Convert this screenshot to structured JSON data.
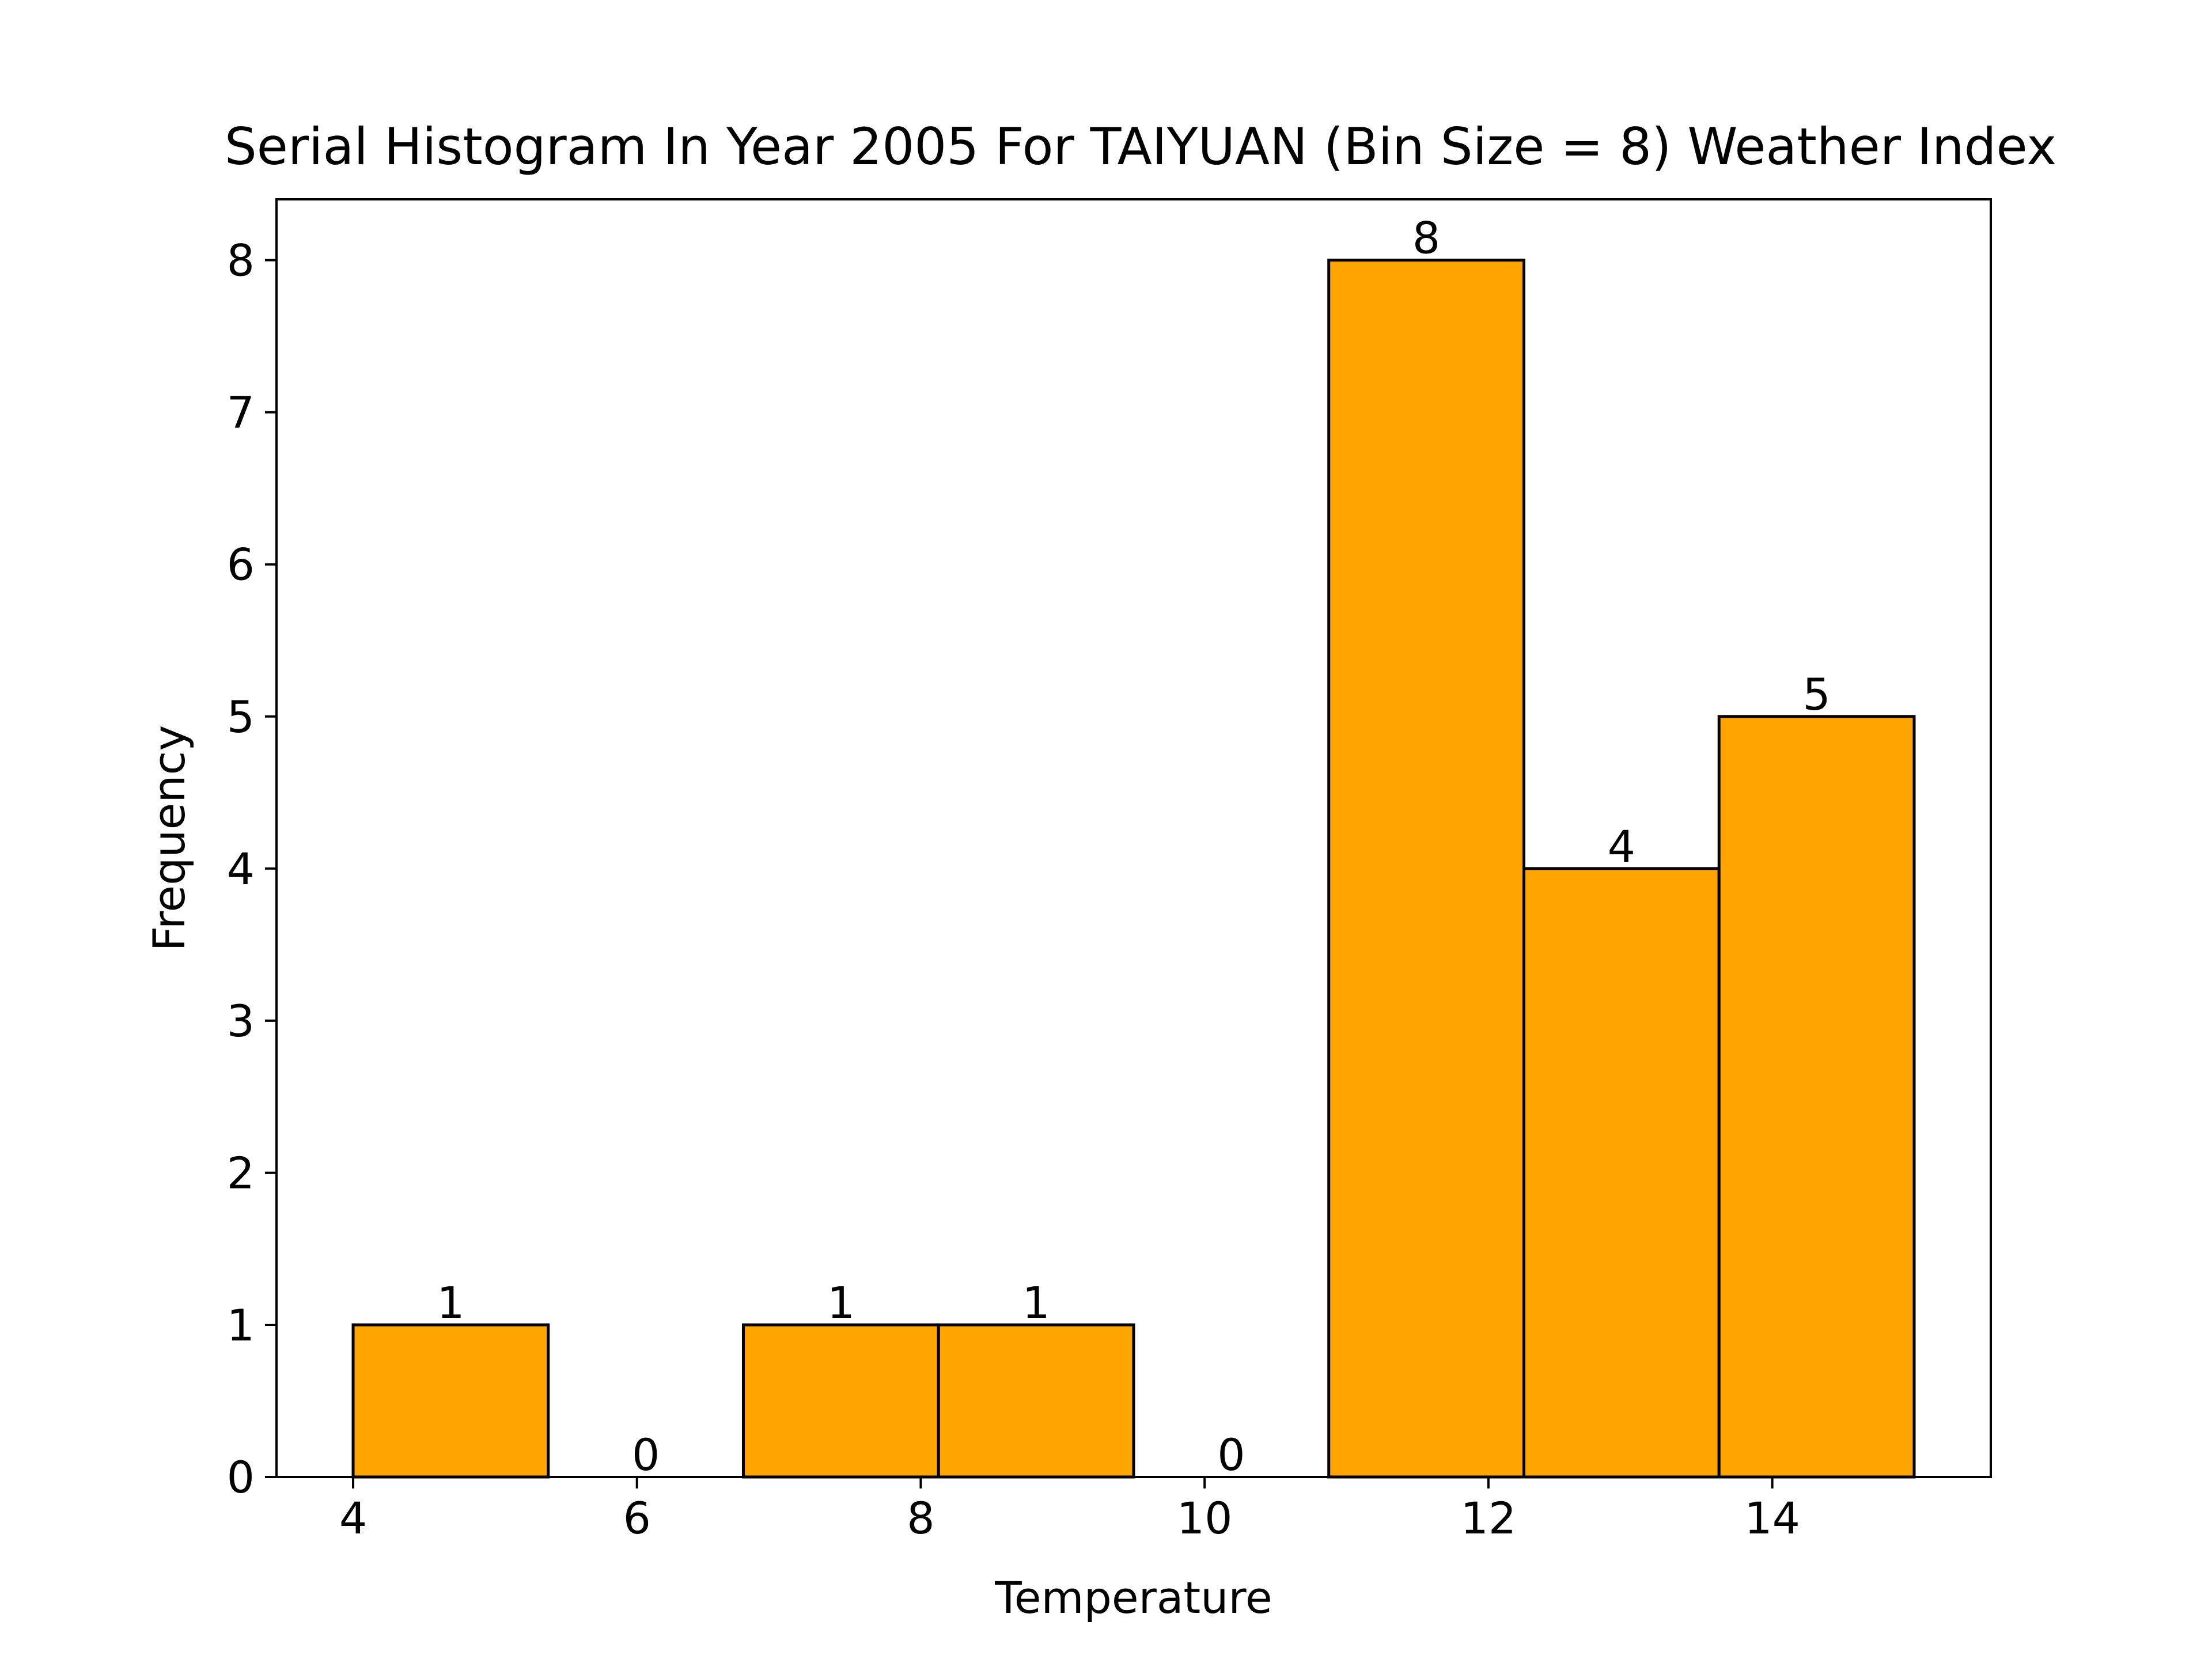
{
  "chart_data": {
    "type": "bar",
    "title": "Serial Histogram In Year 2005 For TAIYUAN (Bin Size = 8) Weather Index",
    "xlabel": "Temperature",
    "ylabel": "Frequency",
    "xlim": [
      3.46,
      15.54
    ],
    "ylim": [
      0,
      8.4
    ],
    "xticks": [
      4,
      6,
      8,
      10,
      12,
      14
    ],
    "yticks": [
      0,
      1,
      2,
      3,
      4,
      5,
      6,
      7,
      8
    ],
    "bin_edges": [
      4.0,
      5.375,
      6.75,
      8.125,
      9.5,
      10.875,
      12.25,
      13.625,
      15.0
    ],
    "values": [
      1,
      0,
      1,
      1,
      0,
      8,
      4,
      5
    ],
    "data_labels": [
      "1",
      "0",
      "1",
      "1",
      "0",
      "8",
      "4",
      "5"
    ],
    "bar_color": "#FFA500",
    "edge_color": "#000000",
    "grid": false,
    "legend": "none"
  }
}
